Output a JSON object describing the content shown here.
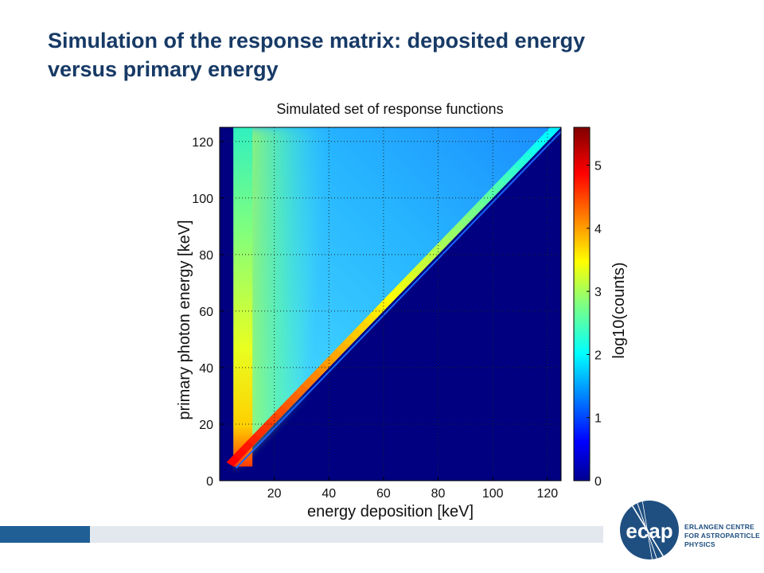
{
  "slide": {
    "title_line1": "Simulation of the response matrix: deposited energy",
    "title_line2": "versus primary energy"
  },
  "chart_data": {
    "type": "heatmap",
    "title": "Simulated set of response functions",
    "xlabel": "energy deposition [keV]",
    "ylabel": "primary photon energy [keV]",
    "xlim": [
      0,
      125
    ],
    "ylim": [
      0,
      125
    ],
    "xticks": [
      20,
      40,
      60,
      80,
      100,
      120
    ],
    "yticks": [
      0,
      20,
      40,
      60,
      80,
      100,
      120
    ],
    "grid": true,
    "colorbar": {
      "label": "log10(counts)",
      "range": [
        0,
        5.6
      ],
      "ticks": [
        0,
        1,
        2,
        3,
        4,
        5
      ],
      "colormap": "jet"
    },
    "regions": [
      {
        "description_ref": "background",
        "value": 0
      },
      {
        "description_ref": "full-energy peak along diagonal",
        "value": 4.9
      },
      {
        "description_ref": "low-energy column",
        "value": 3.2
      },
      {
        "description_ref": "compton continuum",
        "value": 2.2
      }
    ]
  },
  "colors": {
    "title": "#173a66",
    "footer_dark": "#1f5f96",
    "footer_light": "#e3e7ee",
    "jet_low": "#00008f",
    "jet_high": "#800000"
  },
  "logo": {
    "mark_text": "ecap",
    "lines": [
      "ERLANGEN CENTRE",
      "FOR ASTROPARTICLE",
      "PHYSICS"
    ]
  }
}
